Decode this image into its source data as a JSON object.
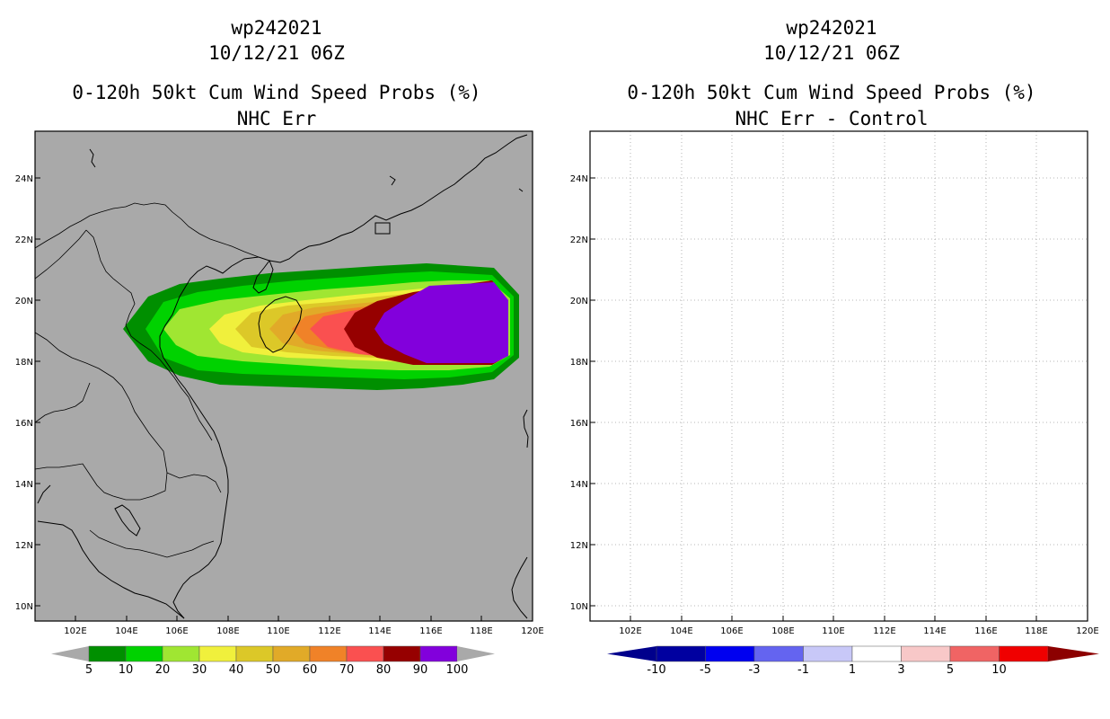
{
  "left_panel": {
    "storm_id": "wp242021",
    "datetime": "10/12/21 06Z",
    "title": "0-120h 50kt Cum Wind Speed Probs (%)",
    "subtitle": "NHC Err",
    "background_color": "#a9a9a9",
    "colorbar": {
      "labels": [
        "5",
        "10",
        "20",
        "30",
        "40",
        "50",
        "60",
        "70",
        "80",
        "90",
        "100"
      ],
      "colors": [
        "#008f00",
        "#00d200",
        "#a0e632",
        "#f0f03c",
        "#dcc828",
        "#e1aa28",
        "#f08228",
        "#fa5050",
        "#960000",
        "#8200dc"
      ],
      "extend_color": "#a9a9a9"
    }
  },
  "right_panel": {
    "storm_id": "wp242021",
    "datetime": "10/12/21 06Z",
    "title": "0-120h 50kt Cum Wind Speed Probs (%)",
    "subtitle": "NHC Err - Control",
    "background_color": "#ffffff",
    "colorbar": {
      "labels": [
        "-10",
        "-5",
        "-3",
        "-1",
        "1",
        "3",
        "5",
        "10"
      ],
      "colors": [
        "#0000a0",
        "#0000f0",
        "#6464f0",
        "#c8c8f8",
        "#ffffff",
        "#f8c8c8",
        "#f06464",
        "#f00000"
      ],
      "low_color": "#00008c",
      "high_color": "#8c0000"
    }
  },
  "axes": {
    "lon_ticks": [
      "102E",
      "104E",
      "106E",
      "108E",
      "110E",
      "112E",
      "114E",
      "116E",
      "118E",
      "120E"
    ],
    "lat_ticks": [
      "24N",
      "22N",
      "20N",
      "18N",
      "16N",
      "14N",
      "12N",
      "10N"
    ]
  },
  "map_data": {
    "lon_range": [
      100.5,
      120
    ],
    "lat_range": [
      9.5,
      25.5
    ],
    "probability_contours": [
      {
        "level": 5,
        "color": "#008f00"
      },
      {
        "level": 10,
        "color": "#00d200"
      },
      {
        "level": 20,
        "color": "#a0e632"
      },
      {
        "level": 30,
        "color": "#f0f03c"
      },
      {
        "level": 40,
        "color": "#dcc828"
      },
      {
        "level": 50,
        "color": "#e1aa28"
      },
      {
        "level": 60,
        "color": "#f08228"
      },
      {
        "level": 70,
        "color": "#fa5050"
      },
      {
        "level": 80,
        "color": "#960000"
      },
      {
        "level": 90,
        "color": "#8200dc"
      }
    ]
  }
}
